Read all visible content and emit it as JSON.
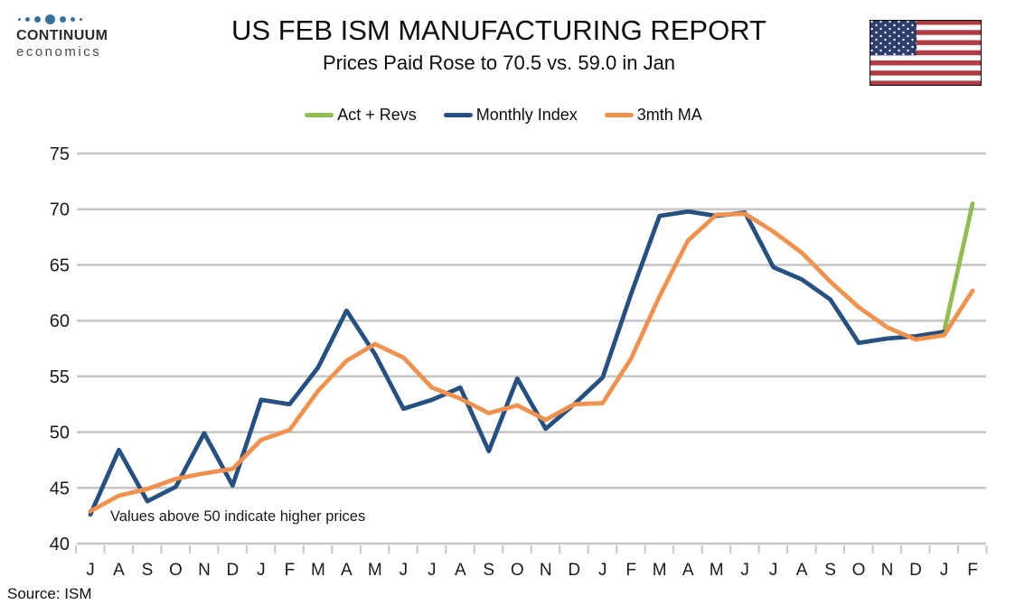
{
  "header": {
    "logo_line1": "CONTINUUM",
    "logo_line2": "economics",
    "flag_icon": "us-flag"
  },
  "chart_data": {
    "type": "line",
    "title": "US FEB ISM MANUFACTURING REPORT",
    "subtitle": "Prices Paid Rose to 70.5 vs. 59.0 in Jan",
    "annotation": "Values above 50 indicate higher prices",
    "source": "Source: ISM",
    "legend_position": "top",
    "grid": true,
    "ylim": [
      40,
      75
    ],
    "yticks": [
      40,
      45,
      50,
      55,
      60,
      65,
      70,
      75
    ],
    "x_labels": [
      "J",
      "A",
      "S",
      "O",
      "N",
      "D",
      "J",
      "F",
      "M",
      "A",
      "M",
      "J",
      "J",
      "A",
      "S",
      "O",
      "N",
      "D",
      "J",
      "F",
      "M",
      "A",
      "M",
      "J",
      "J",
      "A",
      "S",
      "O",
      "N",
      "D",
      "J",
      "F"
    ],
    "series": [
      {
        "name": "Act + Revs",
        "color": "#8FBE4F",
        "values": [
          null,
          null,
          null,
          null,
          null,
          null,
          null,
          null,
          null,
          null,
          null,
          null,
          null,
          null,
          null,
          null,
          null,
          null,
          null,
          null,
          null,
          null,
          null,
          null,
          null,
          null,
          null,
          null,
          null,
          null,
          59.0,
          70.5
        ]
      },
      {
        "name": "Monthly Index",
        "color": "#255081",
        "values": [
          42.6,
          48.4,
          43.8,
          45.1,
          49.9,
          45.2,
          52.9,
          52.5,
          55.8,
          60.9,
          57.0,
          52.1,
          52.9,
          54.0,
          48.3,
          54.8,
          50.3,
          52.5,
          54.9,
          62.4,
          69.4,
          69.8,
          69.4,
          69.7,
          64.8,
          63.7,
          61.9,
          58.0,
          58.4,
          58.6,
          59.0,
          null
        ]
      },
      {
        "name": "3mth MA",
        "color": "#F0924D",
        "values": [
          42.9,
          44.3,
          44.9,
          45.8,
          46.3,
          46.7,
          49.3,
          50.2,
          53.7,
          56.4,
          57.9,
          56.7,
          54.0,
          53.0,
          51.7,
          52.4,
          51.1,
          52.5,
          52.6,
          56.6,
          62.2,
          67.2,
          69.5,
          69.6,
          68.0,
          66.1,
          63.5,
          61.2,
          59.4,
          58.3,
          58.7,
          62.7
        ]
      }
    ]
  }
}
